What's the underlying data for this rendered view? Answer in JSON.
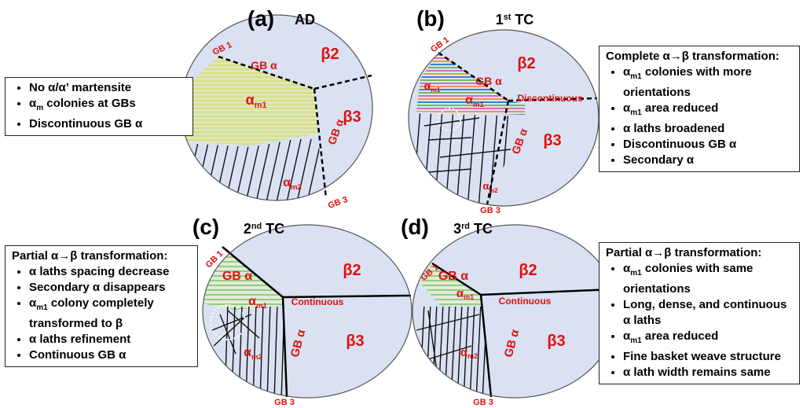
{
  "panels": [
    {
      "label": "(a)",
      "title": [
        {
          "text": "AD"
        }
      ],
      "labels": [
        [
          {
            "text": "GB 1"
          }
        ],
        [
          {
            "text": "GB α"
          }
        ],
        [
          {
            "text": "β2"
          }
        ],
        [
          {
            "text": "α"
          },
          {
            "sub": "m1"
          }
        ],
        [
          {
            "text": "GB α"
          }
        ],
        [
          {
            "text": "β3"
          }
        ],
        [
          {
            "text": "α"
          },
          {
            "sub": "m2"
          }
        ],
        [
          {
            "text": "GB 3"
          }
        ]
      ],
      "box": {
        "bullets": [
          [
            {
              "text": "No α/α’ martensite"
            }
          ],
          [
            {
              "text": "α"
            },
            {
              "sub": "m"
            },
            {
              "text": " colonies at GBs"
            }
          ],
          [
            {
              "text": "Discontinuous GB α"
            }
          ]
        ]
      }
    },
    {
      "label": "(b)",
      "title": [
        {
          "text": "1"
        },
        {
          "sup": "st"
        },
        {
          "text": " TC"
        }
      ],
      "labels": [
        [
          {
            "text": "GB 1"
          }
        ],
        [
          {
            "text": "α"
          },
          {
            "sub": "m1"
          }
        ],
        [
          {
            "text": "GB α"
          }
        ],
        [
          {
            "text": "β2"
          }
        ],
        [
          {
            "text": "α"
          },
          {
            "sub": "m1"
          }
        ],
        [
          {
            "text": "Discontinuous"
          }
        ],
        [
          {
            "text": "β3"
          }
        ],
        [
          {
            "text": "GB α"
          }
        ],
        [
          {
            "text": "α"
          },
          {
            "sub": "m2"
          }
        ],
        [
          {
            "text": "GB 3"
          }
        ]
      ],
      "box": {
        "heading": "Complete α→β transformation:",
        "bullets": [
          [
            {
              "text": "α"
            },
            {
              "sub": "m1"
            },
            {
              "text": " colonies with more orientations"
            }
          ],
          [
            {
              "text": "α"
            },
            {
              "sub": "m1"
            },
            {
              "text": " area reduced"
            }
          ],
          [
            {
              "text": "α laths broadened"
            }
          ],
          [
            {
              "text": "Discontinuous GB α"
            }
          ],
          [
            {
              "text": "Secondary α"
            }
          ]
        ]
      }
    },
    {
      "label": "(c)",
      "title": [
        {
          "text": "2"
        },
        {
          "sup": "nd"
        },
        {
          "text": " TC"
        }
      ],
      "labels": [
        [
          {
            "text": "GB 1"
          }
        ],
        [
          {
            "text": "GB α"
          }
        ],
        [
          {
            "text": "β2"
          }
        ],
        [
          {
            "text": "α"
          },
          {
            "sub": "m1"
          }
        ],
        [
          {
            "text": "Continuous"
          }
        ],
        [
          {
            "text": "β3"
          }
        ],
        [
          {
            "text": "GB α"
          }
        ],
        [
          {
            "text": "α"
          },
          {
            "sub": "m2"
          }
        ],
        [
          {
            "text": "GB 3"
          }
        ]
      ],
      "box": {
        "heading": "Partial α→β transformation:",
        "bullets": [
          [
            {
              "text": "α laths spacing decrease"
            }
          ],
          [
            {
              "text": "Secondary α disappears"
            }
          ],
          [
            {
              "text": "α"
            },
            {
              "sub": "m1"
            },
            {
              "text": " colony completely transformed to β"
            }
          ],
          [
            {
              "text": "α laths refinement"
            }
          ],
          [
            {
              "text": "Continuous GB α"
            }
          ]
        ]
      }
    },
    {
      "label": "(d)",
      "title": [
        {
          "text": "3"
        },
        {
          "sup": "rd"
        },
        {
          "text": " TC"
        }
      ],
      "labels": [
        [
          {
            "text": "GB 1"
          }
        ],
        [
          {
            "text": "GB α"
          }
        ],
        [
          {
            "text": "β2"
          }
        ],
        [
          {
            "text": "α"
          },
          {
            "sub": "m1"
          }
        ],
        [
          {
            "text": "Continuous"
          }
        ],
        [
          {
            "text": "β3"
          }
        ],
        [
          {
            "text": "GB α"
          }
        ],
        [
          {
            "text": "α"
          },
          {
            "sub": "m2"
          }
        ],
        [
          {
            "text": "GB 3"
          }
        ]
      ],
      "box": {
        "heading": "Partial α→β transformation:",
        "bullets": [
          [
            {
              "text": "α"
            },
            {
              "sub": "m1"
            },
            {
              "text": " colonies with same orientations"
            }
          ],
          [
            {
              "text": "Long, dense, and continuous α laths"
            }
          ],
          [
            {
              "text": "α"
            },
            {
              "sub": "m1"
            },
            {
              "text": " area reduced"
            }
          ],
          [
            {
              "text": "Fine basket weave structure"
            }
          ],
          [
            {
              "text": "α lath width remains same"
            }
          ]
        ]
      }
    }
  ]
}
